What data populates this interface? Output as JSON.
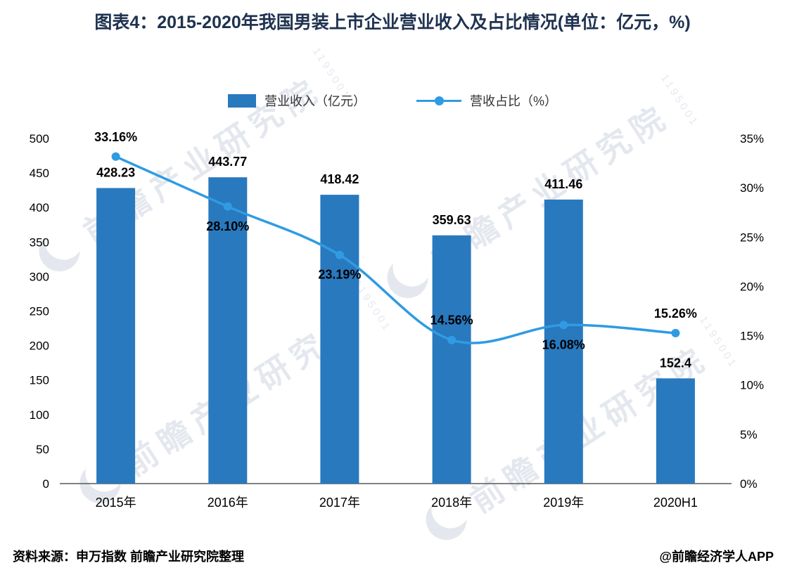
{
  "title": {
    "text": "图表4：2015-2020年我国男装上市企业营业收入及占比情况(单位：亿元，%)"
  },
  "legend": [
    {
      "label": "营业收入（亿元）",
      "type": "bar"
    },
    {
      "label": "营收占比（%）",
      "type": "line"
    }
  ],
  "chart_data": {
    "type": "bar+line combo",
    "categories": [
      "2015年",
      "2016年",
      "2017年",
      "2018年",
      "2019年",
      "2020H1"
    ],
    "series": [
      {
        "name": "营业收入（亿元）",
        "type": "bar",
        "axis": "left",
        "color": "#2979bf",
        "values": [
          428.23,
          443.77,
          418.42,
          359.63,
          411.46,
          152.4
        ],
        "labels": [
          "428.23",
          "443.77",
          "418.42",
          "359.63",
          "411.46",
          "152.4"
        ]
      },
      {
        "name": "营收占比（%）",
        "type": "line",
        "axis": "right",
        "color": "#2f9be3",
        "values": [
          33.16,
          28.1,
          23.19,
          14.56,
          16.08,
          15.26
        ],
        "labels": [
          "33.16%",
          "28.10%",
          "23.19%",
          "14.56%",
          "16.08%",
          "15.26%"
        ],
        "label_positions": [
          "above",
          "below",
          "below",
          "above",
          "below",
          "above"
        ]
      }
    ],
    "left_axis": {
      "min": 0,
      "max": 500,
      "step": 50
    },
    "right_axis": {
      "min": 0,
      "max": 35,
      "step": 5,
      "suffix": "%"
    },
    "grid": false,
    "legend_position": "top"
  },
  "watermark": {
    "text": "前瞻产业研究院",
    "code": "1195001"
  },
  "footer": {
    "source": "资料来源：申万指数   前瞻产业研究院整理",
    "credit": "@前瞻经济学人APP"
  }
}
